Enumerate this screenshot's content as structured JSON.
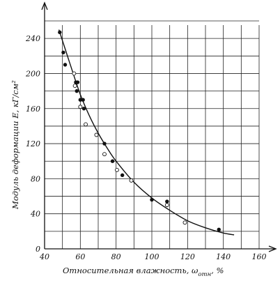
{
  "chart_data": {
    "type": "scatter",
    "xlabel": "Относительная  влажность, ω",
    "xlabel_subscript": "отн",
    "xlabel_unit": ", %",
    "ylabel": "Модуль  деформации  E, кГ/см²",
    "xlim": [
      40,
      160
    ],
    "ylim": [
      0,
      260
    ],
    "x_ticks": [
      40,
      60,
      80,
      100,
      120,
      140,
      160
    ],
    "y_ticks": [
      0,
      40,
      80,
      120,
      160,
      200,
      240
    ],
    "grid": true,
    "series": [
      {
        "marker": "filled",
        "points": [
          {
            "x": 48.5,
            "y": 247
          },
          {
            "x": 50.5,
            "y": 224
          },
          {
            "x": 51.5,
            "y": 210
          },
          {
            "x": 57.5,
            "y": 190
          },
          {
            "x": 58.5,
            "y": 190
          },
          {
            "x": 58.0,
            "y": 180
          },
          {
            "x": 60.0,
            "y": 170
          },
          {
            "x": 61.5,
            "y": 170
          },
          {
            "x": 62.0,
            "y": 160
          },
          {
            "x": 73.5,
            "y": 120
          },
          {
            "x": 78.0,
            "y": 100
          },
          {
            "x": 83.5,
            "y": 84
          },
          {
            "x": 100.0,
            "y": 56
          },
          {
            "x": 108.5,
            "y": 54
          },
          {
            "x": 137.5,
            "y": 22
          }
        ]
      },
      {
        "marker": "open",
        "points": [
          {
            "x": 56.5,
            "y": 200
          },
          {
            "x": 57.0,
            "y": 186
          },
          {
            "x": 60.0,
            "y": 162
          },
          {
            "x": 63.0,
            "y": 142
          },
          {
            "x": 69.0,
            "y": 130
          },
          {
            "x": 73.5,
            "y": 108
          },
          {
            "x": 80.5,
            "y": 90
          },
          {
            "x": 88.5,
            "y": 78
          },
          {
            "x": 108.5,
            "y": 50
          },
          {
            "x": 118.5,
            "y": 30
          }
        ]
      }
    ],
    "trend_line": {
      "x": [
        48,
        52,
        56,
        60,
        65,
        70,
        75,
        80,
        90,
        100,
        110,
        120,
        130,
        140,
        146
      ],
      "y": [
        250,
        225,
        200,
        176,
        152,
        132,
        115,
        100,
        76,
        58,
        44,
        32,
        24,
        18,
        16
      ]
    }
  }
}
